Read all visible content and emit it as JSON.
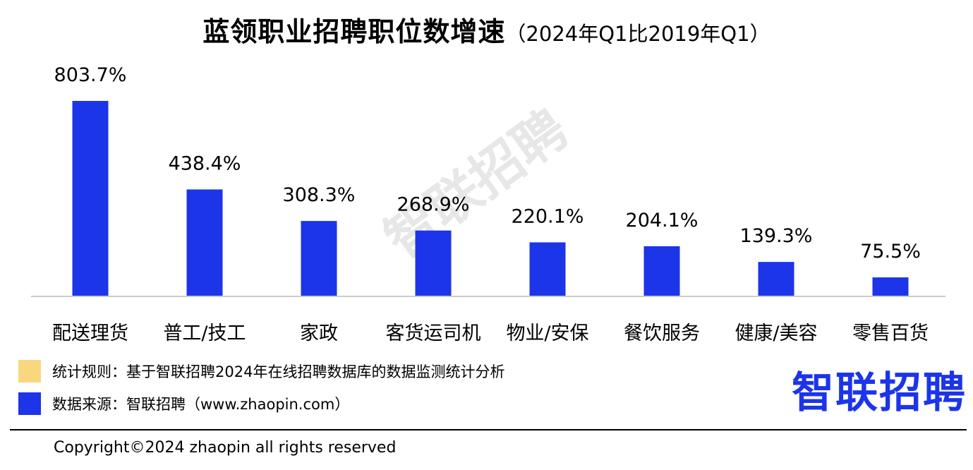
{
  "title": {
    "main": "蓝领职业招聘职位数增速",
    "sub": "（2024年Q1比2019年Q1）"
  },
  "watermark": "智联招聘",
  "chart_data": {
    "type": "bar",
    "categories": [
      "配送理货",
      "普工/技工",
      "家政",
      "客货运司机",
      "物业/安保",
      "餐饮服务",
      "健康/美容",
      "零售百货"
    ],
    "values": [
      803.7,
      438.4,
      308.3,
      268.9,
      220.1,
      204.1,
      139.3,
      75.5
    ],
    "data_labels": [
      "803.7%",
      "438.4%",
      "308.3%",
      "268.9%",
      "220.1%",
      "204.1%",
      "139.3%",
      "75.5%"
    ],
    "unit": "%",
    "ylim": [
      0,
      803.7
    ],
    "grid": false,
    "bar_color": "#1c35e9",
    "axis_color": "#cccccc"
  },
  "legend": [
    {
      "text": "统计规则：基于智联招聘2024年在线招聘数据库的数据监测统计分析",
      "color": "#f8d77e"
    },
    {
      "text": "数据来源：智联招聘（www.zhaopin.com）",
      "color": "#1c35e9"
    }
  ],
  "logo": {
    "text": "智联招聘",
    "color": "#1c35e9"
  },
  "footer": {
    "copyright": "Copyright©2024 zhaopin all rights reserved"
  }
}
